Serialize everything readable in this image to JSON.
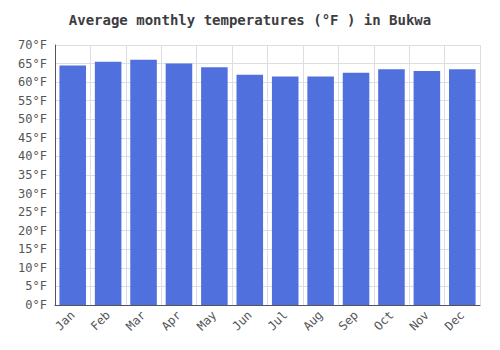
{
  "chart_data": {
    "type": "bar",
    "title": "Average monthly temperatures (°F ) in Bukwa",
    "categories": [
      "Jan",
      "Feb",
      "Mar",
      "Apr",
      "May",
      "Jun",
      "Jul",
      "Aug",
      "Sep",
      "Oct",
      "Nov",
      "Dec"
    ],
    "values": [
      64.5,
      65.5,
      66.0,
      65.0,
      64.0,
      62.0,
      61.5,
      61.5,
      62.5,
      63.5,
      63.0,
      63.5
    ],
    "ylim": [
      0,
      70
    ],
    "yticks": [
      {
        "value": 0,
        "label": "0°F"
      },
      {
        "value": 5,
        "label": "5°F"
      },
      {
        "value": 10,
        "label": "10°F"
      },
      {
        "value": 15,
        "label": "15°F"
      },
      {
        "value": 20,
        "label": "20°F"
      },
      {
        "value": 25,
        "label": "25°F"
      },
      {
        "value": 30,
        "label": "30°F"
      },
      {
        "value": 35,
        "label": "35°F"
      },
      {
        "value": 40,
        "label": "40°F"
      },
      {
        "value": 45,
        "label": "45°F"
      },
      {
        "value": 50,
        "label": "50°F"
      },
      {
        "value": 55,
        "label": "55°F"
      },
      {
        "value": 60,
        "label": "60°F"
      },
      {
        "value": 65,
        "label": "65°F"
      },
      {
        "value": 70,
        "label": "70°F"
      }
    ],
    "grid": true
  }
}
